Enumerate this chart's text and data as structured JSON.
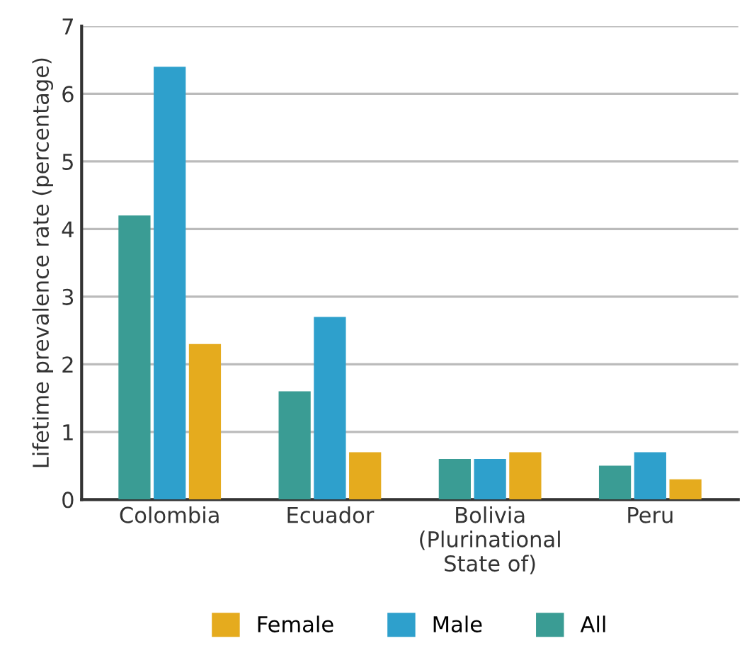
{
  "chart_data": {
    "type": "bar",
    "ylabel": "Lifetime prevalence rate (percentage)",
    "categories": [
      "Colombia",
      "Ecuador",
      "Bolivia\n(Plurinational\nState of)",
      "Peru"
    ],
    "series": [
      {
        "name": "All",
        "color": "#3a9c94",
        "values": [
          4.2,
          1.6,
          0.6,
          0.5
        ]
      },
      {
        "name": "Male",
        "color": "#2ea0cc",
        "values": [
          6.4,
          2.7,
          0.6,
          0.7
        ]
      },
      {
        "name": "Female",
        "color": "#e5ab1e",
        "values": [
          2.3,
          0.7,
          0.7,
          0.3
        ]
      }
    ],
    "ylim": [
      0,
      7
    ],
    "yticks": [
      0,
      1,
      2,
      3,
      4,
      5,
      6,
      7
    ],
    "grid": "y",
    "legend": "bottom"
  }
}
